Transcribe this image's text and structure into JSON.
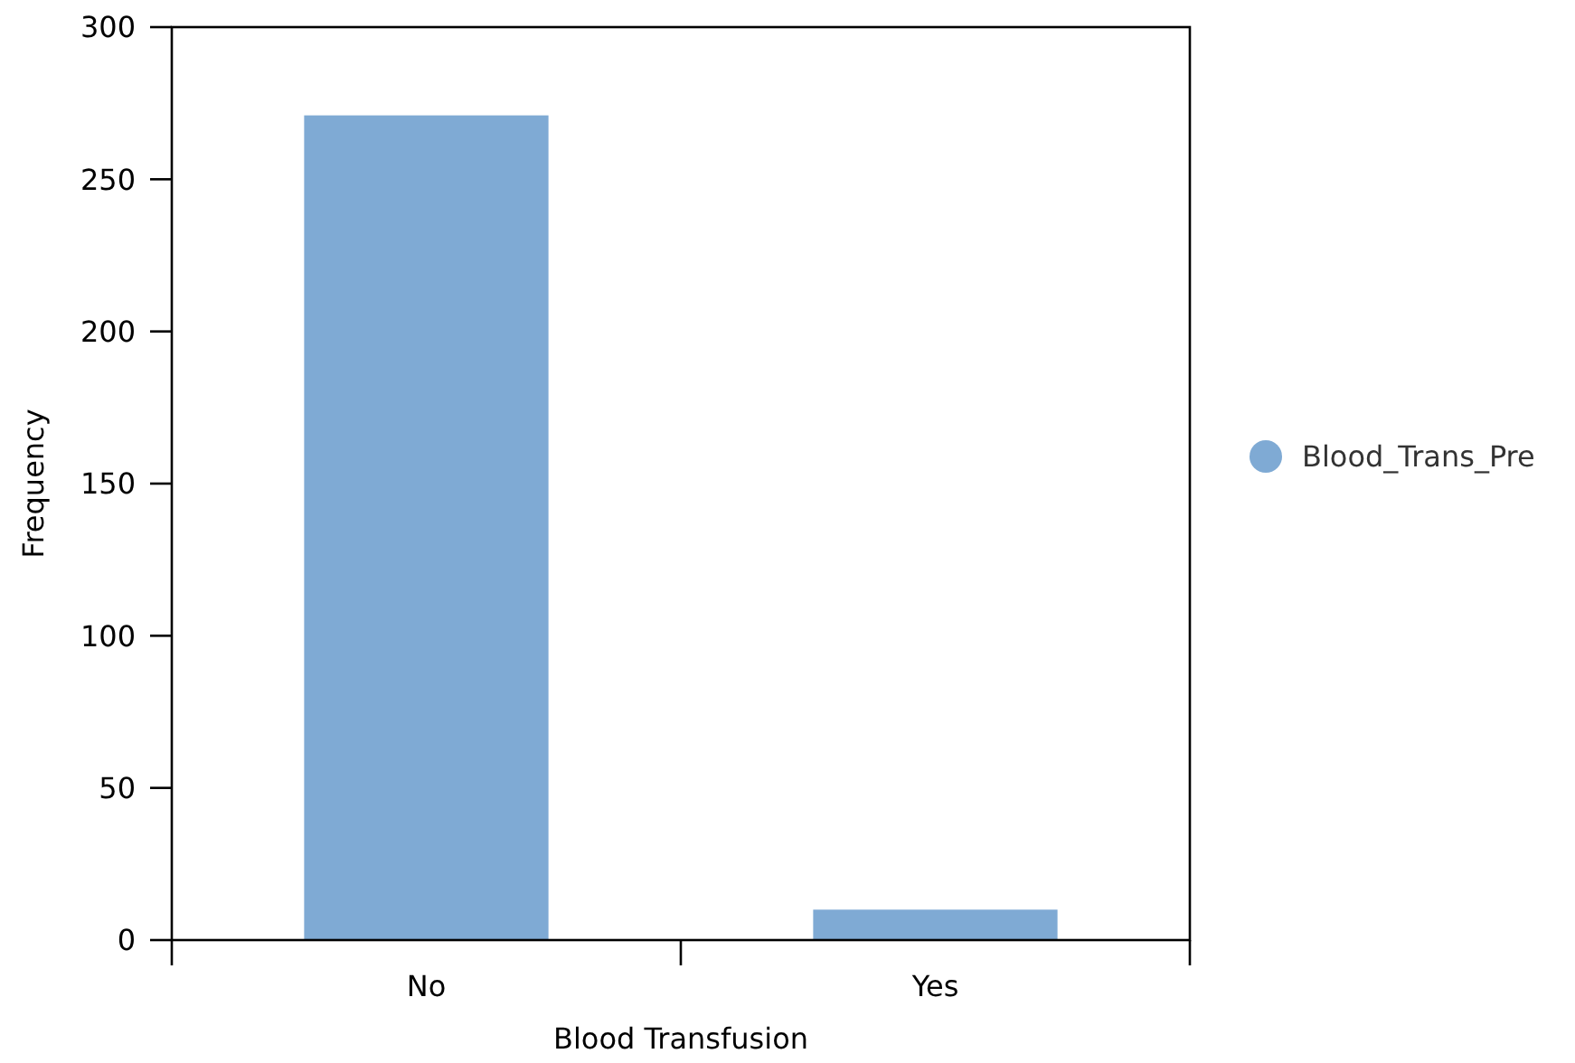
{
  "chart_data": {
    "type": "bar",
    "xlabel": "Blood Transfusion",
    "ylabel": "Frequency",
    "categories": [
      "No",
      "Yes"
    ],
    "series": [
      {
        "name": "Blood_Trans_Pre",
        "color": "#7faad4",
        "values": [
          271,
          10
        ]
      }
    ],
    "ylim": [
      0,
      300
    ],
    "yticks": [
      0,
      50,
      100,
      150,
      200,
      250,
      300
    ],
    "legend": "right",
    "grid": false
  }
}
